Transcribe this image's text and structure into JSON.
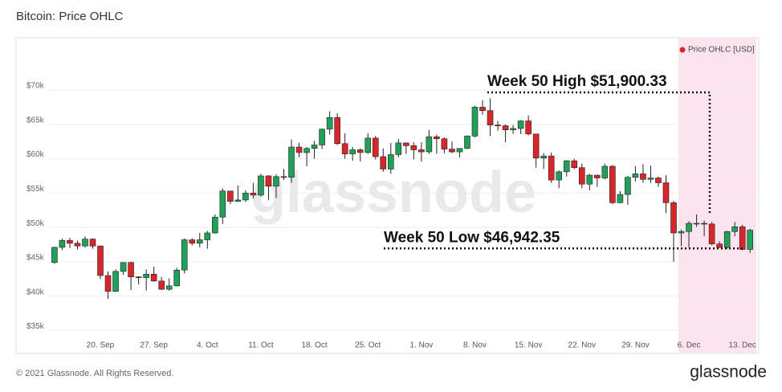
{
  "chart_data": {
    "type": "candlestick",
    "title": "Bitcoin: Price OHLC",
    "series_name": "Price OHLC [USD]",
    "legend": "top-right",
    "up_color": "#21a05a",
    "down_color": "#d8262b",
    "legend_color": "#d8262b",
    "highlight_color": "#fce4ee",
    "grid": true,
    "ylim": [
      34000,
      75500
    ],
    "yticks": [
      {
        "value": 35000,
        "label": "$35k"
      },
      {
        "value": 40000,
        "label": "$40k"
      },
      {
        "value": 45000,
        "label": "$45k"
      },
      {
        "value": 50000,
        "label": "$50k"
      },
      {
        "value": 55000,
        "label": "$55k"
      },
      {
        "value": 60000,
        "label": "$60k"
      },
      {
        "value": 65000,
        "label": "$65k"
      },
      {
        "value": 70000,
        "label": "$70k"
      }
    ],
    "categories": [
      null,
      null,
      null,
      null,
      null,
      null,
      "20. Sep",
      null,
      null,
      null,
      null,
      null,
      null,
      "27. Sep",
      null,
      null,
      null,
      null,
      null,
      null,
      "4. Oct",
      null,
      null,
      null,
      null,
      null,
      null,
      "11. Oct",
      null,
      null,
      null,
      null,
      null,
      null,
      "18. Oct",
      null,
      null,
      null,
      null,
      null,
      null,
      "25. Oct",
      null,
      null,
      null,
      null,
      null,
      null,
      "1. Nov",
      null,
      null,
      null,
      null,
      null,
      null,
      "8. Nov",
      null,
      null,
      null,
      null,
      null,
      null,
      "15. Nov",
      null,
      null,
      null,
      null,
      null,
      null,
      "22. Nov",
      null,
      null,
      null,
      null,
      null,
      null,
      "29. Nov",
      null,
      null,
      null,
      null,
      null,
      null,
      "6. Dec",
      null,
      null,
      null,
      null,
      null,
      null,
      "13. Dec",
      null
    ],
    "ohlc": [
      [
        44900,
        47200,
        44700,
        47100
      ],
      [
        47100,
        48400,
        46700,
        48100
      ],
      [
        48100,
        48500,
        47000,
        47700
      ],
      [
        47700,
        48100,
        46800,
        47300
      ],
      [
        47300,
        48700,
        47100,
        48300
      ],
      [
        48300,
        48400,
        46900,
        47300
      ],
      [
        47300,
        47300,
        42500,
        43000
      ],
      [
        43000,
        43600,
        39600,
        40700
      ],
      [
        40700,
        43900,
        40600,
        43600
      ],
      [
        43600,
        44900,
        43100,
        44900
      ],
      [
        44900,
        45000,
        40900,
        42800
      ],
      [
        42800,
        42900,
        41700,
        42700
      ],
      [
        42700,
        43900,
        40800,
        43200
      ],
      [
        43200,
        44300,
        42100,
        42200
      ],
      [
        42200,
        42800,
        40900,
        41000
      ],
      [
        41000,
        42600,
        40800,
        41500
      ],
      [
        41500,
        44100,
        41400,
        43800
      ],
      [
        43800,
        48400,
        43300,
        48200
      ],
      [
        48200,
        48400,
        47400,
        47700
      ],
      [
        47700,
        49200,
        47100,
        48200
      ],
      [
        48200,
        49500,
        46900,
        49200
      ],
      [
        49200,
        51900,
        49100,
        51500
      ],
      [
        51500,
        55700,
        50500,
        55300
      ],
      [
        55300,
        55300,
        53400,
        53800
      ],
      [
        53800,
        56100,
        53700,
        54000
      ],
      [
        54000,
        55400,
        53700,
        55000
      ],
      [
        55000,
        56500,
        54200,
        54700
      ],
      [
        54700,
        57800,
        54500,
        57500
      ],
      [
        57500,
        57600,
        54000,
        56000
      ],
      [
        56000,
        57700,
        54300,
        57400
      ],
      [
        57400,
        58500,
        56900,
        57300
      ],
      [
        57300,
        62800,
        56500,
        61700
      ],
      [
        61700,
        62300,
        60200,
        60900
      ],
      [
        60900,
        61700,
        58900,
        61500
      ],
      [
        61500,
        62600,
        60000,
        62000
      ],
      [
        62000,
        64400,
        61400,
        64300
      ],
      [
        64300,
        66900,
        63500,
        66000
      ],
      [
        66000,
        66600,
        62000,
        62200
      ],
      [
        62200,
        63700,
        60000,
        60700
      ],
      [
        60700,
        61700,
        59700,
        61300
      ],
      [
        61300,
        61500,
        59600,
        60900
      ],
      [
        60900,
        63700,
        60700,
        63000
      ],
      [
        63000,
        63300,
        59900,
        60300
      ],
      [
        60300,
        61500,
        58100,
        58500
      ],
      [
        58500,
        62300,
        57800,
        60600
      ],
      [
        60600,
        62900,
        60200,
        62300
      ],
      [
        62300,
        62300,
        60700,
        61900
      ],
      [
        61900,
        62400,
        59900,
        61300
      ],
      [
        61300,
        62400,
        59600,
        61000
      ],
      [
        61000,
        64200,
        60700,
        63200
      ],
      [
        63200,
        63500,
        60700,
        62900
      ],
      [
        62900,
        63100,
        60800,
        61400
      ],
      [
        61400,
        62500,
        60800,
        61000
      ],
      [
        61000,
        61500,
        60200,
        61500
      ],
      [
        61500,
        63400,
        61400,
        63300
      ],
      [
        63300,
        67700,
        63100,
        67500
      ],
      [
        67500,
        68500,
        66400,
        67000
      ],
      [
        67000,
        68800,
        63300,
        64900
      ],
      [
        64900,
        65500,
        64100,
        64800
      ],
      [
        64800,
        65000,
        62400,
        64200
      ],
      [
        64200,
        64900,
        63600,
        64400
      ],
      [
        64400,
        65600,
        63600,
        65500
      ],
      [
        65500,
        66300,
        63400,
        63600
      ],
      [
        63600,
        63600,
        58700,
        60100
      ],
      [
        60100,
        60800,
        58500,
        60400
      ],
      [
        60400,
        60900,
        56500,
        56900
      ],
      [
        56900,
        58300,
        55700,
        58100
      ],
      [
        58100,
        59800,
        57400,
        59700
      ],
      [
        59700,
        60000,
        58500,
        58700
      ],
      [
        58700,
        59300,
        55700,
        56300
      ],
      [
        56300,
        57800,
        55400,
        57600
      ],
      [
        57600,
        57700,
        55900,
        57200
      ],
      [
        57200,
        59300,
        57000,
        58900
      ],
      [
        58900,
        59100,
        53400,
        53600
      ],
      [
        53600,
        55300,
        53500,
        54800
      ],
      [
        54800,
        57500,
        53300,
        57300
      ],
      [
        57300,
        58900,
        56700,
        57800
      ],
      [
        57800,
        59200,
        56500,
        57000
      ],
      [
        57000,
        59000,
        56500,
        57200
      ],
      [
        57200,
        57400,
        55900,
        56500
      ],
      [
        56500,
        57600,
        52100,
        53600
      ],
      [
        53600,
        53900,
        45000,
        49200
      ],
      [
        49200,
        49700,
        47300,
        49400
      ],
      [
        49400,
        50900,
        47100,
        50600
      ],
      [
        50600,
        51900,
        50100,
        50600
      ],
      [
        50600,
        51000,
        48700,
        50500
      ],
      [
        50500,
        50800,
        47400,
        47600
      ],
      [
        47600,
        48000,
        47000,
        47100
      ],
      [
        47100,
        49500,
        46900,
        49400
      ],
      [
        49400,
        50800,
        48700,
        50100
      ],
      [
        50100,
        50400,
        46700,
        46800
      ],
      [
        46800,
        49800,
        46300,
        49600
      ]
    ],
    "annotations": [
      {
        "text": "Week 50 High $51,900.33",
        "value": 51900.33
      },
      {
        "text": "Week 50 Low $46,942.35",
        "value": 46942.35
      }
    ],
    "watermark": "glassnode",
    "footer": "© 2021 Glassnode. All Rights Reserved.",
    "brand": "glassnode"
  }
}
